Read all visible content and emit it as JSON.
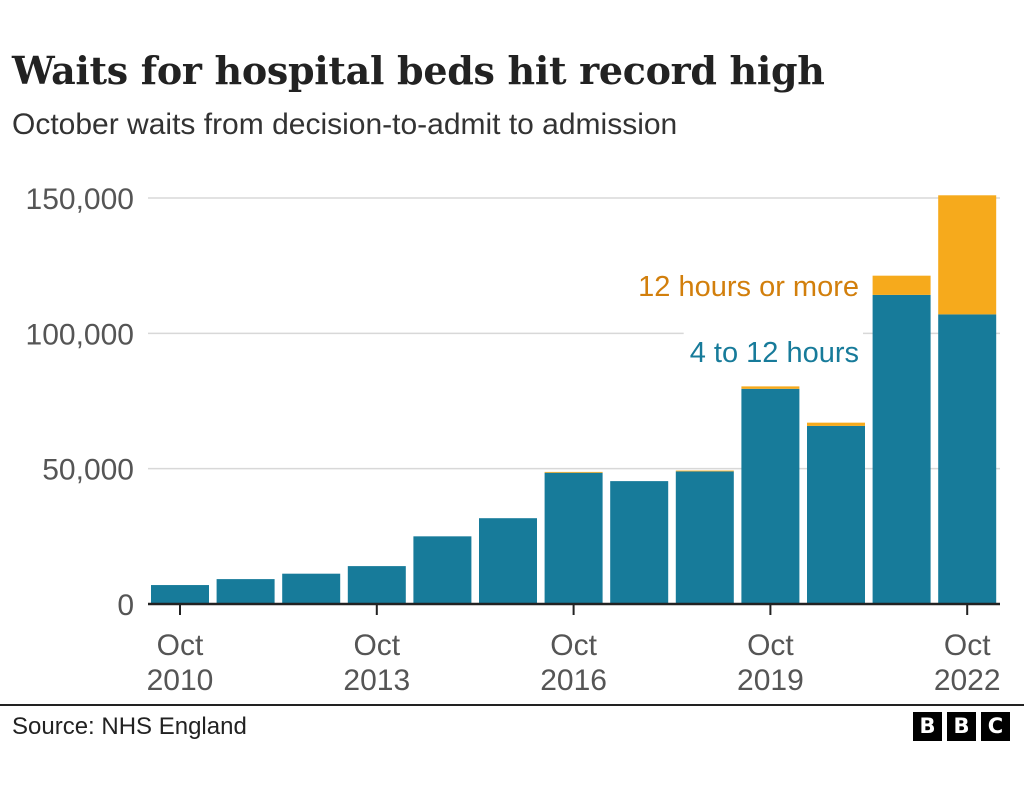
{
  "header": {
    "title": "Waits for hospital beds hit record high",
    "subtitle": "October waits from decision-to-admit to admission"
  },
  "footer": {
    "source": "Source: NHS England",
    "logo_letters": [
      "B",
      "B",
      "C"
    ]
  },
  "colors": {
    "four_to_twelve": "#177b9a",
    "twelve_plus": "#f6aa1c",
    "twelve_plus_label": "#d27f0c",
    "grid": "#d8d8d8",
    "axis": "#222222",
    "tick_text": "#555555"
  },
  "chart_data": {
    "type": "bar",
    "stacked": true,
    "categories": [
      "Oct 2010",
      "Oct 2011",
      "Oct 2012",
      "Oct 2013",
      "Oct 2014",
      "Oct 2015",
      "Oct 2016",
      "Oct 2017",
      "Oct 2018",
      "Oct 2019",
      "Oct 2020",
      "Oct 2021",
      "Oct 2022"
    ],
    "series": [
      {
        "name": "4 to 12 hours",
        "values": [
          7000,
          9200,
          11200,
          14000,
          25000,
          31700,
          48500,
          45400,
          49000,
          79500,
          65800,
          114200,
          107000
        ]
      },
      {
        "name": "12 hours or more",
        "values": [
          0,
          0,
          0,
          0,
          0,
          0,
          300,
          0,
          300,
          900,
          1200,
          7100,
          44000
        ]
      }
    ],
    "ylim": [
      0,
      150000
    ],
    "yticks": [
      {
        "value": 0,
        "label": "0"
      },
      {
        "value": 50000,
        "label": "50,000"
      },
      {
        "value": 100000,
        "label": "100,000"
      },
      {
        "value": 150000,
        "label": "150,000"
      }
    ],
    "xticks": [
      {
        "index": 0,
        "line1": "Oct",
        "line2": "2010"
      },
      {
        "index": 3,
        "line1": "Oct",
        "line2": "2013"
      },
      {
        "index": 6,
        "line1": "Oct",
        "line2": "2016"
      },
      {
        "index": 9,
        "line1": "Oct",
        "line2": "2019"
      },
      {
        "index": 12,
        "line1": "Oct",
        "line2": "2022"
      }
    ],
    "annotations": [
      {
        "series": 1,
        "text": "12 hours or more"
      },
      {
        "series": 0,
        "text": "4 to 12 hours"
      }
    ],
    "grid": true,
    "legend": "none"
  }
}
